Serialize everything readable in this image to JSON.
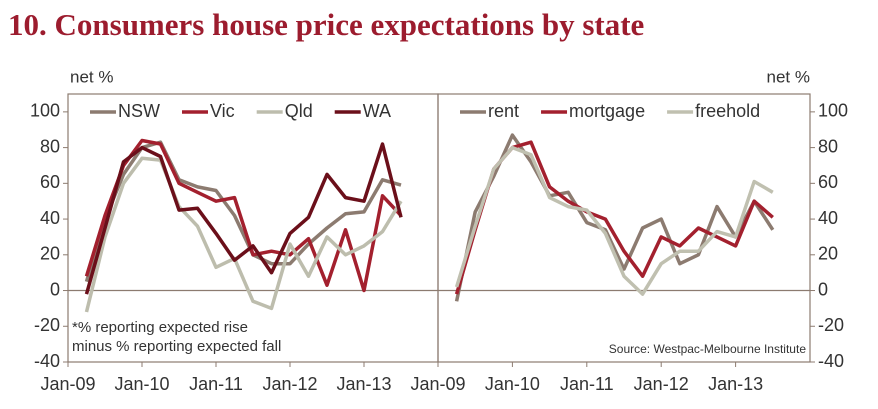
{
  "title": "10. Consumers house price expectations by state",
  "chart_data": [
    {
      "type": "line",
      "y_label": "net %",
      "y_axis_side": "left",
      "annotation": [
        "*% reporting expected rise",
        "minus % reporting expected fall"
      ],
      "x": [
        "2009-04",
        "2009-07",
        "2009-10",
        "2010-01",
        "2010-04",
        "2010-07",
        "2010-10",
        "2011-01",
        "2011-04",
        "2011-07",
        "2011-10",
        "2012-01",
        "2012-04",
        "2012-07",
        "2012-10",
        "2013-01",
        "2013-04",
        "2013-07"
      ],
      "xlim": [
        "2009-01",
        "2014-01"
      ],
      "xticks": [
        {
          "value": "2009-01",
          "label": "Jan-09"
        },
        {
          "value": "2010-01",
          "label": "Jan-10"
        },
        {
          "value": "2011-01",
          "label": "Jan-11"
        },
        {
          "value": "2012-01",
          "label": "Jan-12"
        },
        {
          "value": "2013-01",
          "label": "Jan-13"
        }
      ],
      "ylim": [
        -40,
        110
      ],
      "yticks": [
        -40,
        -20,
        0,
        20,
        40,
        60,
        80,
        100
      ],
      "series": [
        {
          "name": "NSW",
          "color": "#8c7b70",
          "values": [
            5,
            40,
            65,
            80,
            83,
            62,
            58,
            56,
            42,
            20,
            15,
            15,
            26,
            35,
            43,
            44,
            62,
            59
          ]
        },
        {
          "name": "Vic",
          "color": "#a3202e",
          "values": [
            8,
            42,
            70,
            84,
            82,
            60,
            55,
            50,
            52,
            20,
            22,
            20,
            29,
            3,
            34,
            0,
            53,
            42
          ]
        },
        {
          "name": "Qld",
          "color": "#bdbdad",
          "values": [
            -12,
            30,
            60,
            74,
            73,
            47,
            36,
            13,
            18,
            -6,
            -10,
            26,
            8,
            30,
            20,
            25,
            33,
            50
          ]
        },
        {
          "name": "WA",
          "color": "#6b0f1a",
          "values": [
            -2,
            35,
            72,
            80,
            75,
            45,
            46,
            32,
            17,
            25,
            10,
            32,
            41,
            65,
            52,
            50,
            82,
            41
          ]
        }
      ]
    },
    {
      "type": "line",
      "y_label": "net %",
      "y_axis_side": "right",
      "annotation": [
        "Source: Westpac-Melbourne Institute"
      ],
      "x": [
        "2009-04",
        "2009-07",
        "2009-10",
        "2010-01",
        "2010-04",
        "2010-07",
        "2010-10",
        "2011-01",
        "2011-04",
        "2011-07",
        "2011-10",
        "2012-01",
        "2012-04",
        "2012-07",
        "2012-10",
        "2013-01",
        "2013-04",
        "2013-07"
      ],
      "xlim": [
        "2009-01",
        "2014-01"
      ],
      "xticks": [
        {
          "value": "2009-01",
          "label": "Jan-09"
        },
        {
          "value": "2010-01",
          "label": "Jan-10"
        },
        {
          "value": "2011-01",
          "label": "Jan-11"
        },
        {
          "value": "2012-01",
          "label": "Jan-12"
        },
        {
          "value": "2013-01",
          "label": "Jan-13"
        }
      ],
      "ylim": [
        -40,
        110
      ],
      "yticks": [
        -40,
        -20,
        0,
        20,
        40,
        60,
        80,
        100
      ],
      "series": [
        {
          "name": "rent",
          "color": "#8c7b70",
          "values": [
            -6,
            44,
            64,
            87,
            72,
            53,
            55,
            38,
            34,
            12,
            35,
            40,
            15,
            20,
            47,
            30,
            50,
            34
          ]
        },
        {
          "name": "mortgage",
          "color": "#a3202e",
          "values": [
            -2,
            34,
            68,
            80,
            83,
            58,
            50,
            44,
            40,
            22,
            8,
            30,
            25,
            35,
            30,
            25,
            50,
            41
          ]
        },
        {
          "name": "freehold",
          "color": "#c0c0b0",
          "values": [
            2,
            36,
            68,
            80,
            76,
            52,
            47,
            45,
            32,
            8,
            -2,
            15,
            22,
            22,
            33,
            30,
            61,
            55
          ]
        }
      ]
    }
  ]
}
